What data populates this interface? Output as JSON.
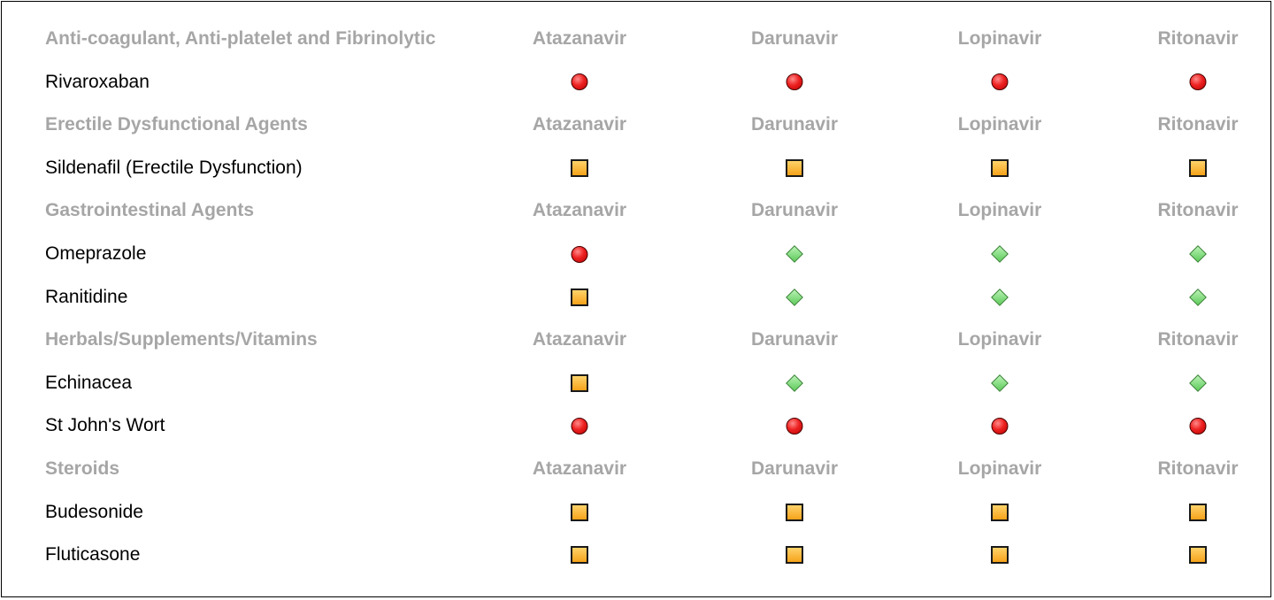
{
  "legend_colors": {
    "red_circle": "#ee2222",
    "amber_square": "#f6a21a",
    "green_diamond": "#5ecb5a"
  },
  "columns": [
    "Atazanavir",
    "Darunavir",
    "Lopinavir",
    "Ritonavir"
  ],
  "rows": [
    {
      "type": "header",
      "label": "Anti-coagulant, Anti-platelet and Fibrinolytic",
      "cols": [
        "Atazanavir",
        "Darunavir",
        "Lopinavir",
        "Ritonavir"
      ]
    },
    {
      "type": "drug",
      "label": "Rivaroxaban",
      "symbols": [
        "red-circle",
        "red-circle",
        "red-circle",
        "red-circle"
      ]
    },
    {
      "type": "header",
      "label": "Erectile Dysfunctional Agents",
      "cols": [
        "Atazanavir",
        "Darunavir",
        "Lopinavir",
        "Ritonavir"
      ]
    },
    {
      "type": "drug",
      "label": "Sildenafil (Erectile Dysfunction)",
      "symbols": [
        "amber-square",
        "amber-square",
        "amber-square",
        "amber-square"
      ]
    },
    {
      "type": "header",
      "label": "Gastrointestinal Agents",
      "cols": [
        "Atazanavir",
        "Darunavir",
        "Lopinavir",
        "Ritonavir"
      ]
    },
    {
      "type": "drug",
      "label": "Omeprazole",
      "symbols": [
        "red-circle",
        "green-diamond",
        "green-diamond",
        "green-diamond"
      ]
    },
    {
      "type": "drug",
      "label": "Ranitidine",
      "symbols": [
        "amber-square",
        "green-diamond",
        "green-diamond",
        "green-diamond"
      ]
    },
    {
      "type": "header",
      "label": "Herbals/Supplements/Vitamins",
      "cols": [
        "Atazanavir",
        "Darunavir",
        "Lopinavir",
        "Ritonavir"
      ]
    },
    {
      "type": "drug",
      "label": "Echinacea",
      "symbols": [
        "amber-square",
        "green-diamond",
        "green-diamond",
        "green-diamond"
      ]
    },
    {
      "type": "drug",
      "label": "St John's Wort",
      "symbols": [
        "red-circle",
        "red-circle",
        "red-circle",
        "red-circle"
      ]
    },
    {
      "type": "header",
      "label": "Steroids",
      "cols": [
        "Atazanavir",
        "Darunavir",
        "Lopinavir",
        "Ritonavir"
      ]
    },
    {
      "type": "drug",
      "label": "Budesonide",
      "symbols": [
        "amber-square",
        "amber-square",
        "amber-square",
        "amber-square"
      ]
    },
    {
      "type": "drug",
      "label": "Fluticasone",
      "symbols": [
        "amber-square",
        "amber-square",
        "amber-square",
        "amber-square"
      ]
    }
  ]
}
